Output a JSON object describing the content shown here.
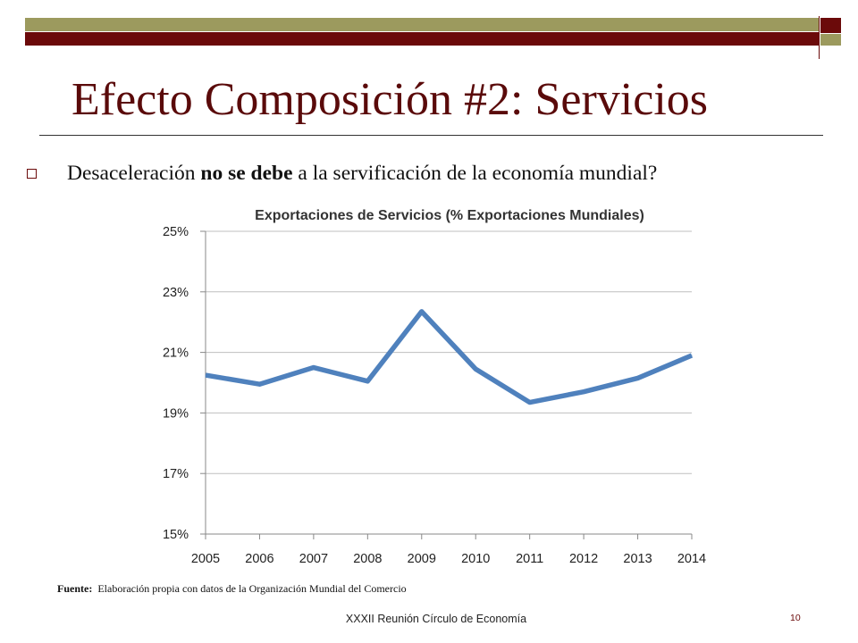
{
  "slide": {
    "title": "Efecto Composición #2: Servicios",
    "bullet": {
      "text_before": "Desaceleración ",
      "text_bold": "no se debe",
      "text_after": " a la servificación de la economía mundial?"
    },
    "source_label": "Fuente:",
    "source_text": "Elaboración propia con datos de la Organización Mundial del Comercio",
    "footer": "XXXII Reunión Círculo de Economía",
    "page_number": "10"
  },
  "colors": {
    "deco_olive": "#9c9a5e",
    "deco_maroon": "#6b0a0a",
    "title": "#5a0a0a",
    "line": "#4f81bd",
    "grid": "#bfbfbf"
  },
  "chart_data": {
    "type": "line",
    "title": "Exportaciones de Servicios (% Exportaciones Mundiales)",
    "xlabel": "",
    "ylabel": "",
    "categories": [
      "2005",
      "2006",
      "2007",
      "2008",
      "2009",
      "2010",
      "2011",
      "2012",
      "2013",
      "2014"
    ],
    "series": [
      {
        "values": [
          20.25,
          19.95,
          20.5,
          20.05,
          22.35,
          20.45,
          19.35,
          19.7,
          20.15,
          20.9
        ]
      }
    ],
    "ylim": [
      15,
      25
    ],
    "yticks": [
      15,
      17,
      19,
      21,
      23,
      25
    ],
    "ytick_labels": [
      "15%",
      "17%",
      "19%",
      "21%",
      "23%",
      "25%"
    ],
    "grid": true,
    "legend": "none"
  }
}
